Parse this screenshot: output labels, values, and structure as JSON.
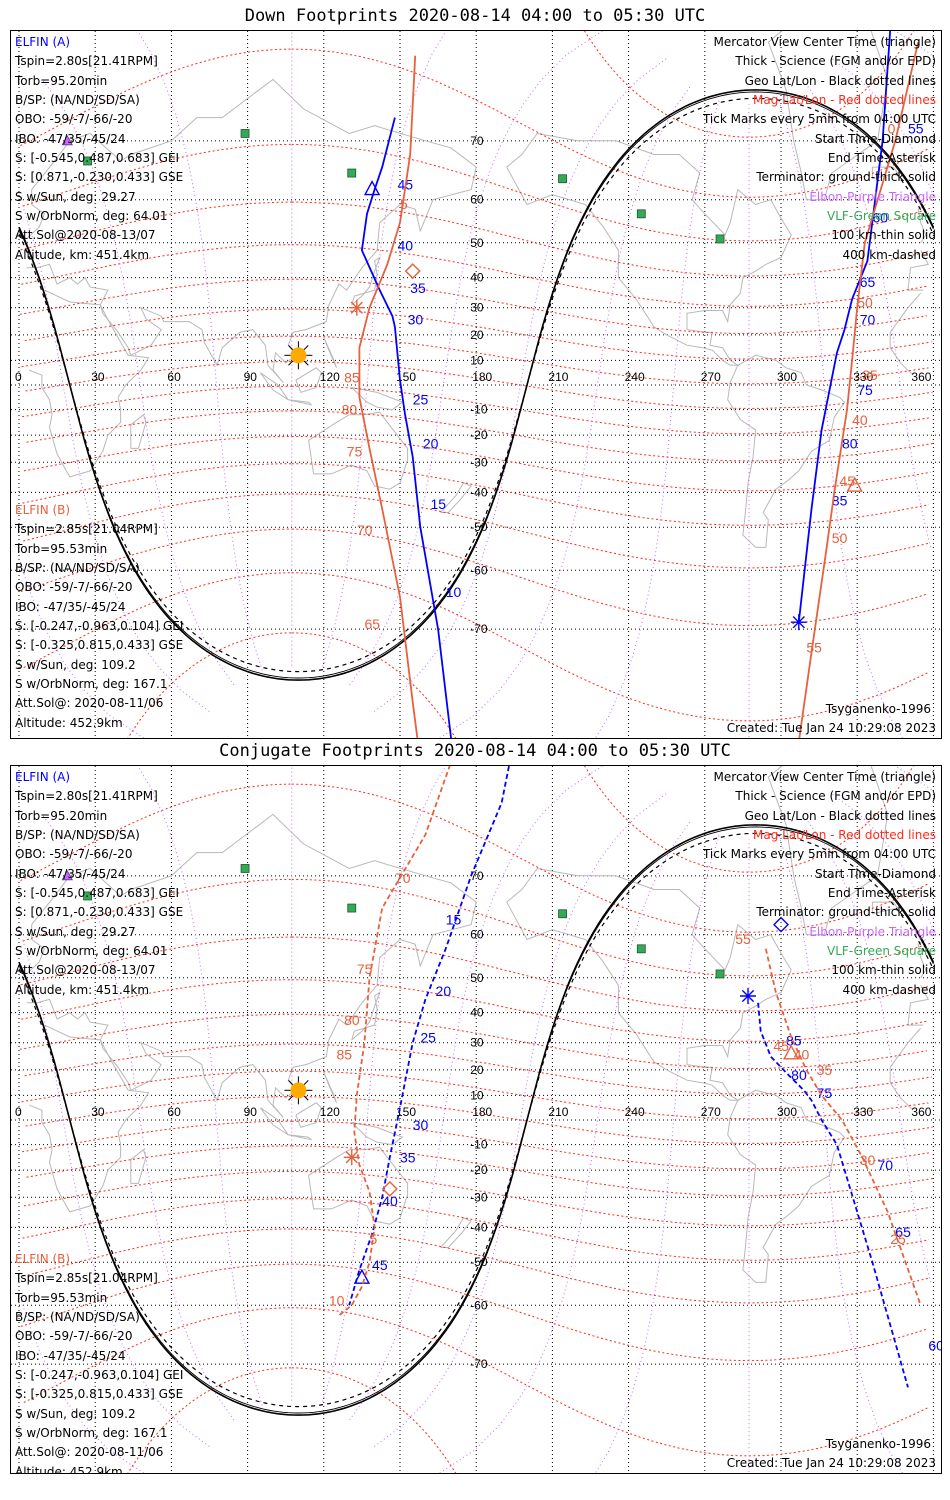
{
  "panels": [
    {
      "title": "Down Footprints 2020-08-14 04:00 to 05:30 UTC",
      "mode": "down",
      "elfin_a": {
        "name": "ELFIN (A)",
        "lines": [
          "Tspin=2.80s[21.41RPM]",
          "Torb=95.20min",
          "B/SP: (NA/ND/SD/SA)",
          "OBO: -59/-7/-66/-20",
          "IBO: -47/35/-45/24",
          "S: [-0.545,0.487,0.683] GEI",
          "S: [0.871,-0.230,0.433] GSE",
          "S w/Sun, deg: 29.27",
          "S w/OrbNorm, deg: 64.01",
          "Att.Sol@2020-08-13/07",
          "Altitude, km: 451.4km"
        ]
      },
      "elfin_b": {
        "name": "ELFIN (B)",
        "lines": [
          "Tspin=2.85s[21.04RPM]",
          "Torb=95.53min",
          "B/SP: (NA/ND/SD/SA)",
          "OBO: -59/-7/-66/-20",
          "IBO: -47/35/-45/24",
          "S: [-0.247,-0.963,0.104] GEI",
          "S: [-0.325,0.815,0.433] GSE",
          "S w/Sun, deg: 109.2",
          "S w/OrbNorm, deg: 167.1",
          "Att.Sol@: 2020-08-11/06",
          "Altitude: 452.9km"
        ]
      },
      "legend": {
        "l1": "Mercator View Center Time (triangle)",
        "l2": "Thick - Science (FGM and/or EPD)",
        "l3": "Geo Lat/Lon - Black dotted lines",
        "l4": "Mag Lat/Lon - Red dotted lines",
        "l5": "Tick Marks every 5min from 04:00 UTC",
        "l6": "Start Time-Diamond",
        "l7": "End Time-Asterisk",
        "l8": "Terminator: ground-thick solid",
        "l9": "Elbon-Purple Triangle",
        "l10": "VLF-Green Square",
        "l11": "100 km-thin solid",
        "l12": "400 km-dashed"
      },
      "model": "Tsyganenko-1996",
      "created": "Created: Tue Jan 24 10:29:08 2023",
      "track_a": {
        "lon": [
          148,
          143,
          140,
          137,
          135,
          142,
          147,
          148,
          150,
          152,
          155,
          158,
          165,
          173
        ],
        "lat": [
          73,
          66,
          62,
          57,
          48,
          36,
          27,
          23,
          2,
          -12,
          -28,
          -50,
          -70,
          -84
        ],
        "labels": [
          {
            "t": "45",
            "lon": 149,
            "lat": 62
          },
          {
            "t": "40",
            "lon": 149,
            "lat": 48
          },
          {
            "t": "35",
            "lon": 154,
            "lat": 35
          },
          {
            "t": "30",
            "lon": 153,
            "lat": 24
          },
          {
            "t": "25",
            "lon": 155,
            "lat": -8
          },
          {
            "t": "20",
            "lon": 159,
            "lat": -25
          },
          {
            "t": "15",
            "lon": 162,
            "lat": -45
          },
          {
            "t": "10",
            "lon": 168,
            "lat": -65
          }
        ],
        "center": {
          "lon": 139,
          "lat": 62
        }
      },
      "track_a2": {
        "lon": [
          344,
          340,
          334,
          328,
          325,
          322,
          316,
          312,
          307
        ],
        "lat": [
          83,
          70,
          45,
          33,
          22,
          13,
          -18,
          -45,
          -69
        ],
        "labels": [
          {
            "t": "55",
            "lon": 350,
            "lat": 71
          },
          {
            "t": "60",
            "lon": 336,
            "lat": 55
          },
          {
            "t": "65",
            "lon": 331,
            "lat": 37
          },
          {
            "t": "70",
            "lon": 331,
            "lat": 24
          },
          {
            "t": "75",
            "lon": 330,
            "lat": -4
          },
          {
            "t": "80",
            "lon": 324,
            "lat": -25
          },
          {
            "t": "85",
            "lon": 320,
            "lat": -44
          }
        ],
        "end": {
          "lon": 307,
          "lat": -69
        }
      },
      "track_b": {
        "lon": [
          156,
          154,
          150,
          145,
          138,
          134,
          134,
          138,
          143,
          150,
          155,
          160
        ],
        "lat": [
          79,
          68,
          55,
          44,
          30,
          15,
          -5,
          -25,
          -45,
          -65,
          -78,
          -84
        ],
        "labels": [
          {
            "t": "5",
            "lon": 150,
            "lat": 58
          },
          {
            "t": "85",
            "lon": 128,
            "lat": 1
          },
          {
            "t": "80",
            "lon": 127,
            "lat": -12
          },
          {
            "t": "75",
            "lon": 129,
            "lat": -28
          },
          {
            "t": "70",
            "lon": 133,
            "lat": -52
          },
          {
            "t": "65",
            "lon": 136,
            "lat": -70
          }
        ],
        "start": {
          "lon": 155,
          "lat": 42
        },
        "end": {
          "lon": 133,
          "lat": 30
        }
      },
      "track_b2": {
        "lon": [
          354,
          345,
          333,
          330,
          328,
          326,
          321,
          318,
          312,
          305
        ],
        "lat": [
          80,
          70,
          50,
          30,
          10,
          -10,
          -40,
          -55,
          -73,
          -83
        ],
        "labels": [
          {
            "t": "0",
            "lon": 342,
            "lat": 71
          },
          {
            "t": "50",
            "lon": 330,
            "lat": 30
          },
          {
            "t": "35",
            "lon": 332,
            "lat": 2
          },
          {
            "t": "40",
            "lon": 328,
            "lat": -16
          },
          {
            "t": "45",
            "lon": 323,
            "lat": -38
          },
          {
            "t": "50",
            "lon": 320,
            "lat": -54
          },
          {
            "t": "55",
            "lon": 310,
            "lat": -73
          }
        ],
        "start": {
          "lon": 327,
          "lat": -87
        },
        "center": {
          "lon": 329,
          "lat": -38
        }
      }
    },
    {
      "title": "Conjugate Footprints 2020-08-14 04:00 to 05:30 UTC",
      "mode": "conj",
      "elfin_a": {
        "name": "ELFIN (A)",
        "lines": [
          "Tspin=2.80s[21.41RPM]",
          "Torb=95.20min",
          "B/SP: (NA/ND/SD/SA)",
          "OBO: -59/-7/-66/-20",
          "IBO: -47/35/-45/24",
          "S: [-0.545,0.487,0.683] GEI",
          "S: [0.871,-0.230,0.433] GSE",
          "S w/Sun, deg: 29.27",
          "S w/OrbNorm, deg: 64.01",
          "Att.Sol@2020-08-13/07",
          "Altitude, km: 451.4km"
        ]
      },
      "elfin_b": {
        "name": "ELFIN (B)",
        "lines": [
          "Tspin=2.85s[21.04RPM]",
          "Torb=95.53min",
          "B/SP: (NA/ND/SD/SA)",
          "OBO: -59/-7/-66/-20",
          "IBO: -47/35/-45/24",
          "S: [-0.247,-0.963,0.104] GEI",
          "S: [-0.325,0.815,0.433] GSE",
          "S w/Sun, deg: 109.2",
          "S w/OrbNorm, deg: 167.1",
          "Att.Sol@: 2020-08-11/06",
          "Altitude: 452.9km"
        ]
      },
      "legend": {
        "l1": "Mercator View Center Time (triangle)",
        "l2": "Thick - Science (FGM and/or EPD)",
        "l3": "Geo Lat/Lon - Black dotted lines",
        "l4": "Mag Lat/Lon - Red dotted lines",
        "l5": "Tick Marks every 5min from 04:00 UTC",
        "l6": "Start Time-Diamond",
        "l7": "End Time-Asterisk",
        "l8": "Terminator: ground-thick solid",
        "l9": "Elbon-Purple Triangle",
        "l10": "VLF-Green Square",
        "l11": "100 km-thin solid",
        "l12": "400 km-dashed"
      },
      "model": "Tsyganenko-1996",
      "created": "Created: Tue Jan 24 10:29:08 2023",
      "track_a": {
        "lon": [
          196,
          190,
          178,
          168,
          160,
          155,
          150,
          146,
          143,
          139,
          134,
          130
        ],
        "lat": [
          83,
          78,
          70,
          57,
          44,
          30,
          5,
          -15,
          -30,
          -42,
          -52,
          -60
        ],
        "labels": [
          {
            "t": "15",
            "lon": 168,
            "lat": 62
          },
          {
            "t": "20",
            "lon": 164,
            "lat": 45
          },
          {
            "t": "25",
            "lon": 158,
            "lat": 30
          },
          {
            "t": "30",
            "lon": 155,
            "lat": -4
          },
          {
            "t": "35",
            "lon": 150,
            "lat": -17
          },
          {
            "t": "40",
            "lon": 143,
            "lat": -33
          },
          {
            "t": "45",
            "lon": 139,
            "lat": -52
          }
        ],
        "center": {
          "lon": 135,
          "lat": -54
        }
      },
      "track_a2": {
        "lon": [
          291,
          292,
          296,
          303,
          309,
          312,
          316,
          322,
          336,
          350
        ],
        "lat": [
          43,
          34,
          25,
          18,
          12,
          8,
          0,
          -10,
          -50,
          -73
        ],
        "labels": [
          {
            "t": "85",
            "lon": 302,
            "lat": 29
          },
          {
            "t": "80",
            "lon": 304,
            "lat": 16
          },
          {
            "t": "75",
            "lon": 314,
            "lat": 9
          },
          {
            "t": "70",
            "lon": 338,
            "lat": -20
          },
          {
            "t": "65",
            "lon": 345,
            "lat": -43
          },
          {
            "t": "60",
            "lon": 358,
            "lat": -68
          }
        ],
        "start": {
          "lon": 300,
          "lat": 62
        },
        "end": {
          "lon": 287,
          "lat": 45
        }
      },
      "track_b": {
        "lon": [
          175,
          160,
          143,
          138,
          136,
          133,
          132,
          134,
          138,
          140,
          138,
          135,
          131,
          126
        ],
        "lat": [
          83,
          75,
          65,
          50,
          30,
          10,
          -5,
          -18,
          -28,
          -40,
          -50,
          -56,
          -60,
          -62
        ],
        "labels": [
          {
            "t": "70",
            "lon": 148,
            "lat": 69
          },
          {
            "t": "75",
            "lon": 133,
            "lat": 51
          },
          {
            "t": "80",
            "lon": 128,
            "lat": 36
          },
          {
            "t": "85",
            "lon": 125,
            "lat": 24
          },
          {
            "t": "5",
            "lon": 138,
            "lat": -45
          },
          {
            "t": "10",
            "lon": 122,
            "lat": -60
          }
        ],
        "start": {
          "lon": 146,
          "lat": -27
        },
        "end": {
          "lon": 131,
          "lat": -15
        }
      },
      "track_b2": {
        "lon": [
          294,
          298,
          304,
          310,
          316,
          324,
          332,
          342,
          355
        ],
        "lat": [
          57,
          46,
          32,
          20,
          10,
          0,
          -15,
          -35,
          -60
        ],
        "labels": [
          {
            "t": "55",
            "lon": 282,
            "lat": 58
          },
          {
            "t": "45",
            "lon": 297,
            "lat": 27
          },
          {
            "t": "40",
            "lon": 305,
            "lat": 24
          },
          {
            "t": "35",
            "lon": 314,
            "lat": 18
          },
          {
            "t": "30",
            "lon": 331,
            "lat": -18
          },
          {
            "t": "25",
            "lon": 343,
            "lat": -45
          }
        ],
        "center": {
          "lon": 304,
          "lat": 26
        }
      }
    }
  ],
  "geo_axis": {
    "lon_ticks": [
      0,
      30,
      60,
      90,
      120,
      150,
      180,
      210,
      240,
      270,
      300,
      330,
      360
    ],
    "lat_ticks": [
      70,
      60,
      50,
      40,
      30,
      20,
      10,
      -10,
      -20,
      -30,
      -40,
      -50,
      -60,
      -70
    ]
  },
  "colors": {
    "elfin_a": "#0000ff",
    "elfin_b": "#e8603c",
    "mag_grid": "#ff2a1a",
    "geo_grid": "#000000",
    "elbon": "#cc66ff",
    "vlf": "#33aa55",
    "sun": "#ffaa00",
    "coast": "#b8b8b8"
  },
  "sun": {
    "lon": 110,
    "lat": 12
  },
  "vlf_sites": [
    {
      "lon": 89,
      "lat": 71
    },
    {
      "lon": 27,
      "lat": 67
    },
    {
      "lon": 131,
      "lat": 65
    },
    {
      "lon": 214,
      "lat": 64
    },
    {
      "lon": 245,
      "lat": 57
    },
    {
      "lon": 276,
      "lat": 51
    }
  ],
  "elbon_sites": [
    {
      "lon": 19,
      "lat": 70
    }
  ]
}
